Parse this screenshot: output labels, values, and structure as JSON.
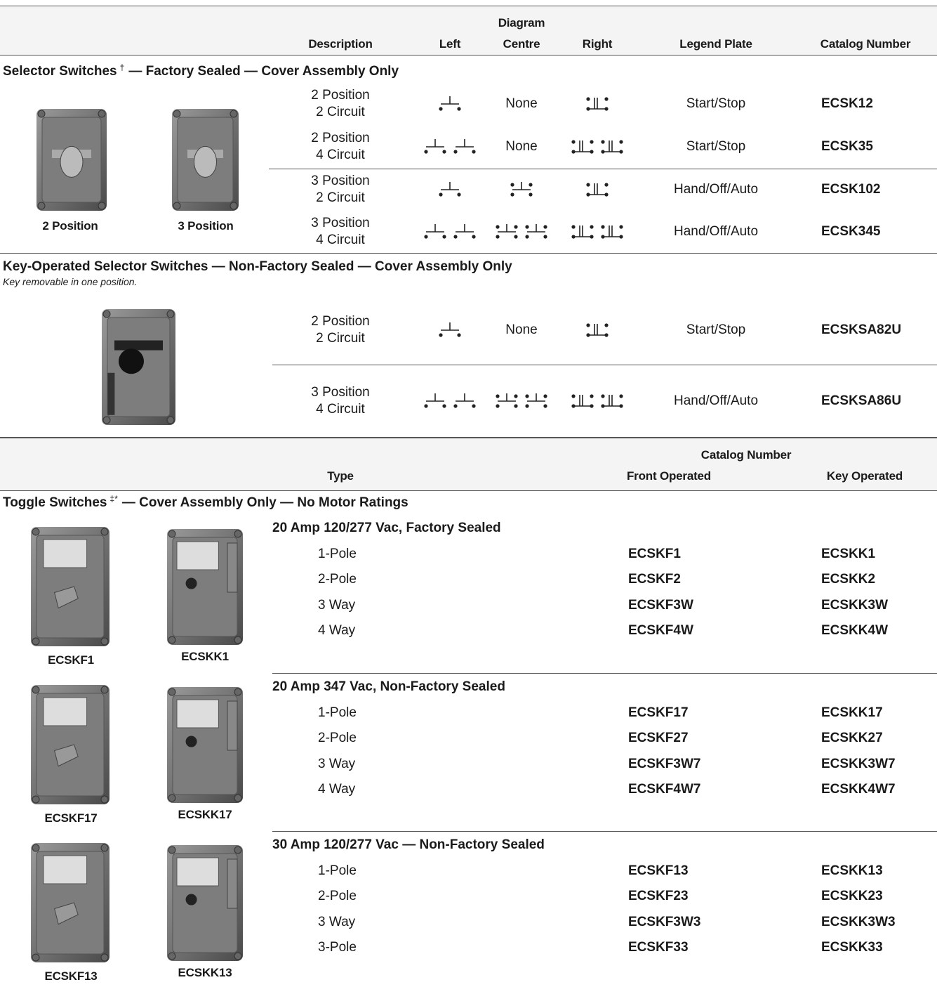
{
  "table1": {
    "header": {
      "diagram": "Diagram",
      "description": "Description",
      "left": "Left",
      "centre": "Centre",
      "right": "Right",
      "legend_plate": "Legend Plate",
      "catalog_number": "Catalog Number"
    },
    "sections": [
      {
        "title": "Selector Switches",
        "sup": "†",
        "title_suffix": "— Factory Sealed — Cover Assembly Only",
        "captions": [
          "2 Position",
          "3 Position"
        ],
        "rows": [
          {
            "description": [
              "2 Position",
              "2 Circuit"
            ],
            "centre": "None",
            "legend": "Start/Stop",
            "catalog": "ECSK12"
          },
          {
            "description": [
              "2 Position",
              "4 Circuit"
            ],
            "centre": "None",
            "legend": "Start/Stop",
            "catalog": "ECSK35"
          },
          {
            "description": [
              "3 Position",
              "2 Circuit"
            ],
            "legend": "Hand/Off/Auto",
            "catalog": "ECSK102"
          },
          {
            "description": [
              "3 Position",
              "4 Circuit"
            ],
            "legend": "Hand/Off/Auto",
            "catalog": "ECSK345"
          }
        ]
      },
      {
        "title": "Key-Operated Selector Switches — Non-Factory Sealed — Cover Assembly Only",
        "note": "Key removable in one position.",
        "rows": [
          {
            "description": [
              "2 Position",
              "2 Circuit"
            ],
            "centre": "None",
            "legend": "Start/Stop",
            "catalog": "ECSKSA82U"
          },
          {
            "description": [
              "3 Position",
              "4 Circuit"
            ],
            "legend": "Hand/Off/Auto",
            "catalog": "ECSKSA86U"
          }
        ]
      }
    ]
  },
  "table2": {
    "header": {
      "catalog_number": "Catalog Number",
      "type": "Type",
      "front_operated": "Front Operated",
      "key_operated": "Key Operated"
    },
    "section": {
      "title": "Toggle Switches",
      "sup": "‡*",
      "title_suffix": "— Cover Assembly Only — No Motor Ratings"
    },
    "groups": [
      {
        "heading": "20 Amp 120/277 Vac, Factory Sealed",
        "captions": [
          "ECSKF1",
          "ECSKK1"
        ],
        "rows": [
          [
            "1-Pole",
            "ECSKF1",
            "ECSKK1"
          ],
          [
            "2-Pole",
            "ECSKF2",
            "ECSKK2"
          ],
          [
            "3 Way",
            "ECSKF3W",
            "ECSKK3W"
          ],
          [
            "4 Way",
            "ECSKF4W",
            "ECSKK4W"
          ]
        ]
      },
      {
        "heading": "20 Amp 347 Vac, Non-Factory Sealed",
        "captions": [
          "ECSKF17",
          "ECSKK17"
        ],
        "rows": [
          [
            "1-Pole",
            "ECSKF17",
            "ECSKK17"
          ],
          [
            "2-Pole",
            "ECSKF27",
            "ECSKK27"
          ],
          [
            "3 Way",
            "ECSKF3W7",
            "ECSKK3W7"
          ],
          [
            "4 Way",
            "ECSKF4W7",
            "ECSKK4W7"
          ]
        ]
      },
      {
        "heading": "30 Amp 120/277 Vac — Non-Factory Sealed",
        "captions": [
          "ECSKF13",
          "ECSKK13"
        ],
        "rows": [
          [
            "1-Pole",
            "ECSKF13",
            "ECSKK13"
          ],
          [
            "2-Pole",
            "ECSKF23",
            "ECSKK23"
          ],
          [
            "3 Way",
            "ECSKF3W3",
            "ECSKK3W3"
          ],
          [
            "3-Pole",
            "ECSKF33",
            "ECSKK33"
          ]
        ]
      }
    ]
  }
}
